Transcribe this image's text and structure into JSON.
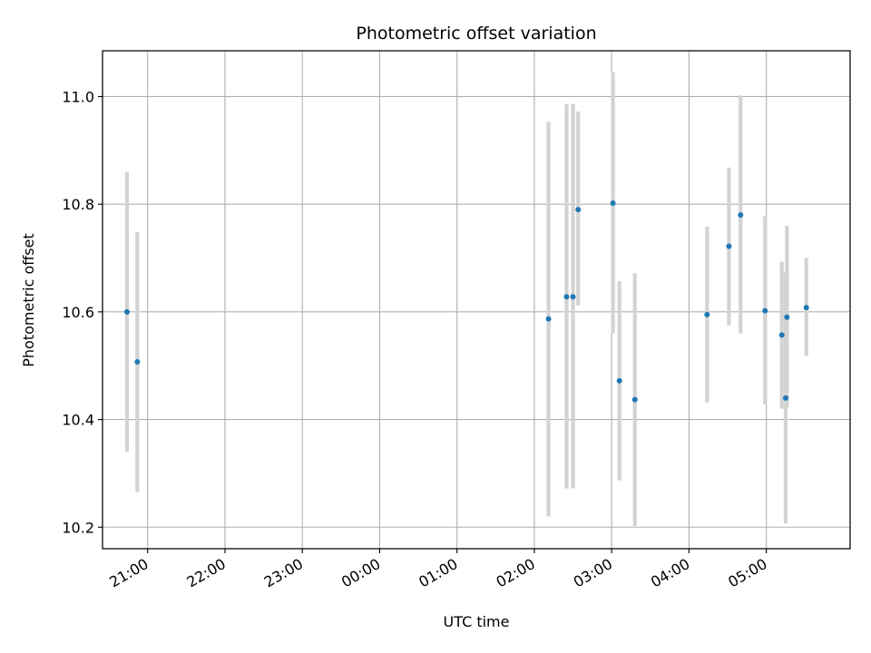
{
  "chart_data": {
    "type": "scatter",
    "title": "Photometric offset variation",
    "xlabel": "UTC time",
    "ylabel": "Photometric offset",
    "x_ticks": [
      "21:00",
      "22:00",
      "23:00",
      "00:00",
      "01:00",
      "02:00",
      "03:00",
      "04:00",
      "05:00"
    ],
    "y_ticks": [
      "10.2",
      "10.4",
      "10.6",
      "10.8",
      "11.0"
    ],
    "xlim": [
      "20:25",
      "06:05"
    ],
    "ylim": [
      10.16,
      11.085
    ],
    "grid": true,
    "colors": {
      "points": "#1f77b4",
      "errorbars": "#d3d3d3",
      "grid": "#b0b0b0"
    },
    "series": [
      {
        "points": [
          {
            "x": "20:44",
            "y": 10.6,
            "ylow": 10.34,
            "yhigh": 10.86
          },
          {
            "x": "20:52",
            "y": 10.507,
            "ylow": 10.265,
            "yhigh": 10.748
          },
          {
            "x": "02:11",
            "y": 10.587,
            "ylow": 10.22,
            "yhigh": 10.953
          },
          {
            "x": "02:25",
            "y": 10.628,
            "ylow": 10.272,
            "yhigh": 10.986
          },
          {
            "x": "02:30",
            "y": 10.628,
            "ylow": 10.272,
            "yhigh": 10.986
          },
          {
            "x": "02:34",
            "y": 10.79,
            "ylow": 10.612,
            "yhigh": 10.972
          },
          {
            "x": "03:01",
            "y": 10.802,
            "ylow": 10.56,
            "yhigh": 11.045
          },
          {
            "x": "03:06",
            "y": 10.472,
            "ylow": 10.287,
            "yhigh": 10.657
          },
          {
            "x": "03:18",
            "y": 10.437,
            "ylow": 10.202,
            "yhigh": 10.672
          },
          {
            "x": "04:14",
            "y": 10.595,
            "ylow": 10.432,
            "yhigh": 10.758
          },
          {
            "x": "04:31",
            "y": 10.722,
            "ylow": 10.575,
            "yhigh": 10.868
          },
          {
            "x": "04:40",
            "y": 10.78,
            "ylow": 10.56,
            "yhigh": 11.002
          },
          {
            "x": "04:59",
            "y": 10.602,
            "ylow": 10.428,
            "yhigh": 10.778
          },
          {
            "x": "05:12",
            "y": 10.557,
            "ylow": 10.42,
            "yhigh": 10.693
          },
          {
            "x": "05:15",
            "y": 10.44,
            "ylow": 10.207,
            "yhigh": 10.673
          },
          {
            "x": "05:16",
            "y": 10.59,
            "ylow": 10.422,
            "yhigh": 10.76
          },
          {
            "x": "05:31",
            "y": 10.608,
            "ylow": 10.518,
            "yhigh": 10.7
          }
        ]
      }
    ]
  }
}
